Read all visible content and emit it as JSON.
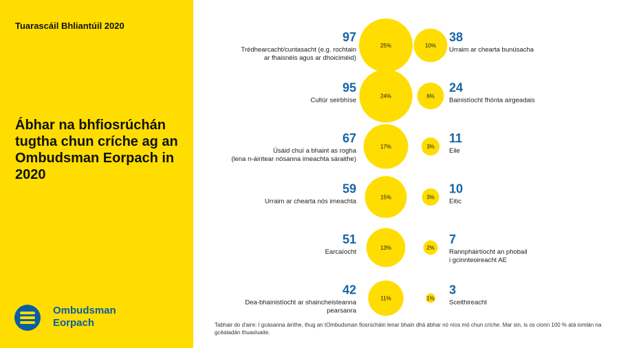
{
  "report_label": "Tuarascáil Bhliantúil 2020",
  "title": "Ábhar na bhfiosrúchán tugtha chun críche ag an Ombudsman Eorpach in 2020",
  "logo": {
    "line1": "Ombudsman",
    "line2": "Eorpach",
    "icon": "european-ombudsman-logo-icon"
  },
  "colors": {
    "panel": "#FFDD00",
    "bubble": "#FFDD00",
    "count": "#1565A8",
    "logo": "#0A5FA0"
  },
  "chart_data": {
    "type": "bubble",
    "left": [
      {
        "count": 97,
        "percent": "25%",
        "label": [
          "Trédhearcacht/cuntasacht (e.g. rochtain",
          "ar fhaisnéis agus ar dhoiciméid)"
        ]
      },
      {
        "count": 95,
        "percent": "24%",
        "label": [
          "Cultúr seirbhíse"
        ]
      },
      {
        "count": 67,
        "percent": "17%",
        "label": [
          "Úsáid chuí a bhaint as rogha",
          "(lena n-áirítear nósanna imeachta sáraithe)"
        ]
      },
      {
        "count": 59,
        "percent": "15%",
        "label": [
          "Urraim ar chearta nós imeachta"
        ]
      },
      {
        "count": 51,
        "percent": "13%",
        "label": [
          "Earcaíocht"
        ]
      },
      {
        "count": 42,
        "percent": "11%",
        "label": [
          "Dea-bhainistíocht ar shaincheisteanna",
          "pearsanra"
        ]
      }
    ],
    "right": [
      {
        "count": 38,
        "percent": "10%",
        "label": [
          "Urraim ar chearta bunúsacha"
        ]
      },
      {
        "count": 24,
        "percent": "6%",
        "label": [
          "Bainistíocht fhónta airgeadais"
        ]
      },
      {
        "count": 11,
        "percent": "3%",
        "label": [
          "Eile"
        ]
      },
      {
        "count": 10,
        "percent": "3%",
        "label": [
          "Eitic"
        ]
      },
      {
        "count": 7,
        "percent": "2%",
        "label": [
          "Rannpháirtíocht an phobail",
          "i gcinnteoireacht AE"
        ]
      },
      {
        "count": 3,
        "percent": "1%",
        "label": [
          "Sceithireacht"
        ]
      }
    ]
  },
  "footnote": "Tabhair do d'aire: I gcásanna áirithe, thug an tOmbudsman fiosrúcháin lenar bhain dhá ábhar nó níos mó chun críche. Mar sin, is os cionn 100 % atá iomlán na gcéatadán thuasluaite."
}
